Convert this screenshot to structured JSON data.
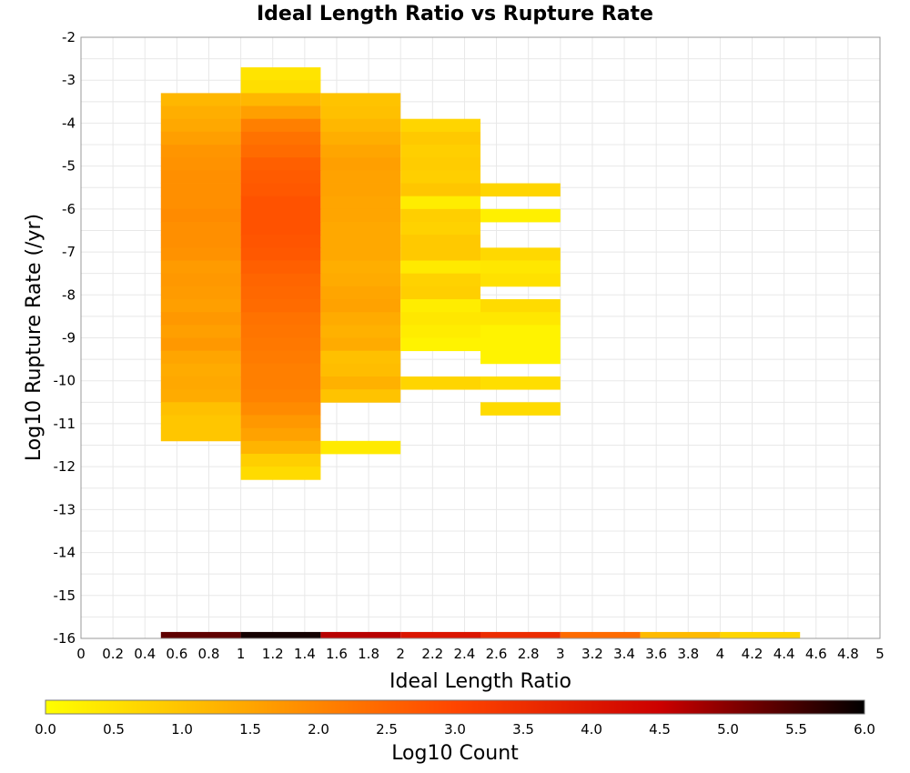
{
  "chart_data": {
    "type": "heatmap",
    "title": "Ideal Length Ratio vs Rupture Rate",
    "xlabel": "Ideal Length Ratio",
    "ylabel": "Log10 Rupture Rate (/yr)",
    "xlim": [
      0,
      5
    ],
    "ylim": [
      -16,
      -2
    ],
    "grid": true,
    "x_ticks": [
      "0",
      "0.2",
      "0.4",
      "0.6",
      "0.8",
      "1",
      "1.2",
      "1.4",
      "1.6",
      "1.8",
      "2",
      "2.2",
      "2.4",
      "2.6",
      "2.8",
      "3",
      "3.2",
      "3.4",
      "3.6",
      "3.8",
      "4",
      "4.2",
      "4.4",
      "4.6",
      "4.8",
      "5"
    ],
    "y_ticks": [
      "-2",
      "-3",
      "-4",
      "-5",
      "-6",
      "-7",
      "-8",
      "-9",
      "-10",
      "-11",
      "-12",
      "-13",
      "-14",
      "-15",
      "-16"
    ],
    "colorbar": {
      "label": "Log10 Count",
      "range": [
        0,
        6
      ],
      "ticks": [
        "0.0",
        "0.5",
        "1.0",
        "1.5",
        "2.0",
        "2.5",
        "3.0",
        "3.5",
        "4.0",
        "4.5",
        "5.0",
        "5.5",
        "6.0"
      ],
      "colors": [
        "#ffff00",
        "#ffa500",
        "#ff4500",
        "#cc0000",
        "#000000"
      ]
    },
    "x_bin_width": 0.5,
    "y_bin_height": 0.3,
    "columns": [
      {
        "x_start": 0.5,
        "rows": [
          {
            "y": -3.3,
            "v": 1.2
          },
          {
            "y": -3.6,
            "v": 1.35
          },
          {
            "y": -3.9,
            "v": 1.45
          },
          {
            "y": -4.2,
            "v": 1.6
          },
          {
            "y": -4.5,
            "v": 1.75
          },
          {
            "y": -4.8,
            "v": 1.8
          },
          {
            "y": -5.1,
            "v": 1.85
          },
          {
            "y": -5.4,
            "v": 1.85
          },
          {
            "y": -5.7,
            "v": 1.85
          },
          {
            "y": -6.0,
            "v": 1.9
          },
          {
            "y": -6.3,
            "v": 1.85
          },
          {
            "y": -6.6,
            "v": 1.85
          },
          {
            "y": -6.9,
            "v": 1.8
          },
          {
            "y": -7.2,
            "v": 1.65
          },
          {
            "y": -7.5,
            "v": 1.7
          },
          {
            "y": -7.8,
            "v": 1.65
          },
          {
            "y": -8.1,
            "v": 1.6
          },
          {
            "y": -8.4,
            "v": 1.7
          },
          {
            "y": -8.7,
            "v": 1.6
          },
          {
            "y": -9.0,
            "v": 1.7
          },
          {
            "y": -9.3,
            "v": 1.5
          },
          {
            "y": -9.6,
            "v": 1.4
          },
          {
            "y": -9.9,
            "v": 1.45
          },
          {
            "y": -10.2,
            "v": 1.4
          },
          {
            "y": -10.5,
            "v": 1.05
          },
          {
            "y": -10.8,
            "v": 0.95
          },
          {
            "y": -11.1,
            "v": 0.95
          }
        ]
      },
      {
        "x_start": 1.0,
        "rows": [
          {
            "y": -2.7,
            "v": 0.45
          },
          {
            "y": -3.0,
            "v": 0.55
          },
          {
            "y": -3.3,
            "v": 1.2
          },
          {
            "y": -3.6,
            "v": 1.6
          },
          {
            "y": -3.9,
            "v": 2.1
          },
          {
            "y": -4.2,
            "v": 2.3
          },
          {
            "y": -4.5,
            "v": 2.4
          },
          {
            "y": -4.8,
            "v": 2.6
          },
          {
            "y": -5.1,
            "v": 2.65
          },
          {
            "y": -5.4,
            "v": 2.7
          },
          {
            "y": -5.7,
            "v": 2.8
          },
          {
            "y": -6.0,
            "v": 2.8
          },
          {
            "y": -6.3,
            "v": 2.8
          },
          {
            "y": -6.6,
            "v": 2.75
          },
          {
            "y": -6.9,
            "v": 2.7
          },
          {
            "y": -7.2,
            "v": 2.6
          },
          {
            "y": -7.5,
            "v": 2.5
          },
          {
            "y": -7.8,
            "v": 2.45
          },
          {
            "y": -8.1,
            "v": 2.4
          },
          {
            "y": -8.4,
            "v": 2.3
          },
          {
            "y": -8.7,
            "v": 2.25
          },
          {
            "y": -9.0,
            "v": 2.2
          },
          {
            "y": -9.3,
            "v": 2.15
          },
          {
            "y": -9.6,
            "v": 2.1
          },
          {
            "y": -9.9,
            "v": 2.1
          },
          {
            "y": -10.2,
            "v": 2.05
          },
          {
            "y": -10.5,
            "v": 1.9
          },
          {
            "y": -10.8,
            "v": 1.7
          },
          {
            "y": -11.1,
            "v": 1.55
          },
          {
            "y": -11.4,
            "v": 1.25
          },
          {
            "y": -11.7,
            "v": 0.8
          },
          {
            "y": -12.0,
            "v": 0.6
          }
        ]
      },
      {
        "x_start": 1.5,
        "rows": [
          {
            "y": -3.3,
            "v": 1.0
          },
          {
            "y": -3.6,
            "v": 1.05
          },
          {
            "y": -3.9,
            "v": 1.2
          },
          {
            "y": -4.2,
            "v": 1.35
          },
          {
            "y": -4.5,
            "v": 1.5
          },
          {
            "y": -4.8,
            "v": 1.6
          },
          {
            "y": -5.1,
            "v": 1.55
          },
          {
            "y": -5.4,
            "v": 1.55
          },
          {
            "y": -5.7,
            "v": 1.5
          },
          {
            "y": -6.0,
            "v": 1.5
          },
          {
            "y": -6.3,
            "v": 1.45
          },
          {
            "y": -6.6,
            "v": 1.45
          },
          {
            "y": -6.9,
            "v": 1.45
          },
          {
            "y": -7.2,
            "v": 1.35
          },
          {
            "y": -7.5,
            "v": 1.4
          },
          {
            "y": -7.8,
            "v": 1.5
          },
          {
            "y": -8.1,
            "v": 1.55
          },
          {
            "y": -8.4,
            "v": 1.4
          },
          {
            "y": -8.7,
            "v": 1.3
          },
          {
            "y": -9.0,
            "v": 1.4
          },
          {
            "y": -9.3,
            "v": 1.05
          },
          {
            "y": -9.6,
            "v": 1.1
          },
          {
            "y": -9.9,
            "v": 1.3
          },
          {
            "y": -10.2,
            "v": 1.0
          },
          {
            "y": -11.4,
            "v": 0.35
          }
        ]
      },
      {
        "x_start": 2.0,
        "rows": [
          {
            "y": -3.9,
            "v": 0.7
          },
          {
            "y": -4.2,
            "v": 0.9
          },
          {
            "y": -4.5,
            "v": 0.8
          },
          {
            "y": -4.8,
            "v": 0.85
          },
          {
            "y": -5.1,
            "v": 0.8
          },
          {
            "y": -5.4,
            "v": 0.95
          },
          {
            "y": -5.7,
            "v": 0.3
          },
          {
            "y": -6.0,
            "v": 0.8
          },
          {
            "y": -6.3,
            "v": 0.75
          },
          {
            "y": -6.6,
            "v": 0.9
          },
          {
            "y": -6.9,
            "v": 0.9
          },
          {
            "y": -7.2,
            "v": 0.35
          },
          {
            "y": -7.5,
            "v": 0.75
          },
          {
            "y": -7.8,
            "v": 0.8
          },
          {
            "y": -8.1,
            "v": 0.3
          },
          {
            "y": -8.4,
            "v": 0.4
          },
          {
            "y": -8.7,
            "v": 0.3
          },
          {
            "y": -9.0,
            "v": 0.2
          },
          {
            "y": -9.9,
            "v": 0.7
          }
        ]
      },
      {
        "x_start": 2.5,
        "rows": [
          {
            "y": -5.4,
            "v": 0.7
          },
          {
            "y": -6.0,
            "v": 0.25
          },
          {
            "y": -6.9,
            "v": 0.65
          },
          {
            "y": -7.2,
            "v": 0.4
          },
          {
            "y": -7.5,
            "v": 0.5
          },
          {
            "y": -8.1,
            "v": 0.6
          },
          {
            "y": -8.4,
            "v": 0.4
          },
          {
            "y": -8.7,
            "v": 0.2
          },
          {
            "y": -9.0,
            "v": 0.2
          },
          {
            "y": -9.3,
            "v": 0.2
          },
          {
            "y": -9.9,
            "v": 0.55
          },
          {
            "y": -10.5,
            "v": 0.6
          }
        ]
      }
    ],
    "bottom_bins": [
      {
        "x_start": 0.5,
        "v": 5.3
      },
      {
        "x_start": 1.0,
        "v": 5.85
      },
      {
        "x_start": 1.5,
        "v": 4.65
      },
      {
        "x_start": 2.0,
        "v": 4.05
      },
      {
        "x_start": 2.5,
        "v": 3.55
      },
      {
        "x_start": 3.0,
        "v": 2.4
      },
      {
        "x_start": 3.5,
        "v": 1.15
      },
      {
        "x_start": 4.0,
        "v": 0.7
      }
    ]
  }
}
